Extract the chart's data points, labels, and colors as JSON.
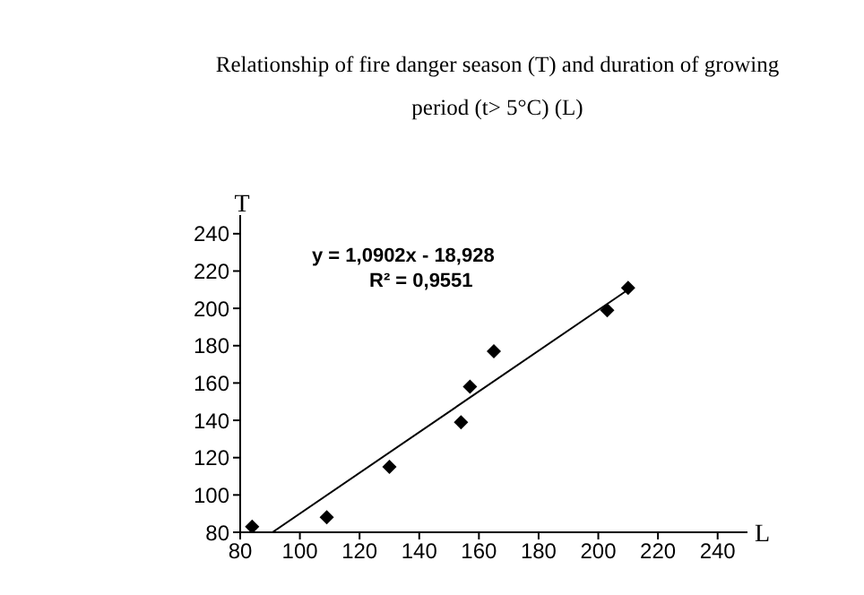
{
  "chart_data": {
    "type": "scatter",
    "title": "Relationship of fire danger season (T) and duration of growing period (t> 5°C) (L)",
    "xlabel": "L",
    "ylabel": "T",
    "annotations": [
      "y = 1,0902x - 18,928",
      "R² = 0,9551"
    ],
    "xlim": [
      80,
      250
    ],
    "ylim": [
      80,
      250
    ],
    "xticks": [
      80,
      100,
      120,
      140,
      160,
      180,
      200,
      220,
      240
    ],
    "yticks": [
      80,
      100,
      120,
      140,
      160,
      180,
      200,
      220,
      240
    ],
    "series": [
      {
        "marker": "diamond",
        "color": "#000000",
        "x": [
          84,
          109,
          130,
          154,
          157,
          165,
          203,
          210
        ],
        "values": [
          83,
          88,
          115,
          139,
          158,
          177,
          199,
          211
        ]
      },
      {
        "type": "line",
        "marker": "none",
        "color": "#000000",
        "x": [
          90.8,
          210
        ],
        "values": [
          80,
          210
        ]
      }
    ]
  }
}
